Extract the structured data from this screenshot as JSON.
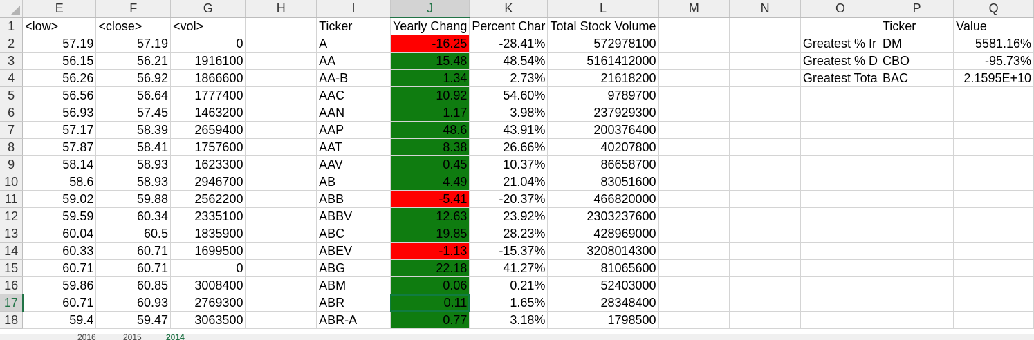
{
  "columns": [
    "E",
    "F",
    "G",
    "H",
    "I",
    "J",
    "K",
    "L",
    "M",
    "N",
    "O",
    "P",
    "Q"
  ],
  "selected_column": "J",
  "selected_row": "17",
  "row_numbers": [
    "1",
    "2",
    "3",
    "4",
    "5",
    "6",
    "7",
    "8",
    "9",
    "10",
    "11",
    "12",
    "13",
    "14",
    "15",
    "16",
    "17",
    "18"
  ],
  "header_row": {
    "E": "<low>",
    "F": "<close>",
    "G": "<vol>",
    "I": "Ticker",
    "J": "Yearly Chang",
    "K": "Percent Char",
    "L": "Total Stock Volume",
    "P": "Ticker",
    "Q": "Value"
  },
  "rows": [
    {
      "low": "57.19",
      "close": "57.19",
      "vol": "0",
      "ticker": "A",
      "yearly": "-16.25",
      "percent": "-28.41%",
      "total": "572978100"
    },
    {
      "low": "56.15",
      "close": "56.21",
      "vol": "1916100",
      "ticker": "AA",
      "yearly": "15.48",
      "percent": "48.54%",
      "total": "5161412000"
    },
    {
      "low": "56.26",
      "close": "56.92",
      "vol": "1866600",
      "ticker": "AA-B",
      "yearly": "1.34",
      "percent": "2.73%",
      "total": "21618200"
    },
    {
      "low": "56.56",
      "close": "56.64",
      "vol": "1777400",
      "ticker": "AAC",
      "yearly": "10.92",
      "percent": "54.60%",
      "total": "9789700"
    },
    {
      "low": "56.93",
      "close": "57.45",
      "vol": "1463200",
      "ticker": "AAN",
      "yearly": "1.17",
      "percent": "3.98%",
      "total": "237929300"
    },
    {
      "low": "57.17",
      "close": "58.39",
      "vol": "2659400",
      "ticker": "AAP",
      "yearly": "48.6",
      "percent": "43.91%",
      "total": "200376400"
    },
    {
      "low": "57.87",
      "close": "58.41",
      "vol": "1757600",
      "ticker": "AAT",
      "yearly": "8.38",
      "percent": "26.66%",
      "total": "40207800"
    },
    {
      "low": "58.14",
      "close": "58.93",
      "vol": "1623300",
      "ticker": "AAV",
      "yearly": "0.45",
      "percent": "10.37%",
      "total": "86658700"
    },
    {
      "low": "58.6",
      "close": "58.93",
      "vol": "2946700",
      "ticker": "AB",
      "yearly": "4.49",
      "percent": "21.04%",
      "total": "83051600"
    },
    {
      "low": "59.02",
      "close": "59.88",
      "vol": "2562200",
      "ticker": "ABB",
      "yearly": "-5.41",
      "percent": "-20.37%",
      "total": "466820000"
    },
    {
      "low": "59.59",
      "close": "60.34",
      "vol": "2335100",
      "ticker": "ABBV",
      "yearly": "12.63",
      "percent": "23.92%",
      "total": "2303237600"
    },
    {
      "low": "60.04",
      "close": "60.5",
      "vol": "1835900",
      "ticker": "ABC",
      "yearly": "19.85",
      "percent": "28.23%",
      "total": "428969000"
    },
    {
      "low": "60.33",
      "close": "60.71",
      "vol": "1699500",
      "ticker": "ABEV",
      "yearly": "-1.13",
      "percent": "-15.37%",
      "total": "3208014300"
    },
    {
      "low": "60.71",
      "close": "60.71",
      "vol": "0",
      "ticker": "ABG",
      "yearly": "22.18",
      "percent": "41.27%",
      "total": "81065600"
    },
    {
      "low": "59.86",
      "close": "60.85",
      "vol": "3008400",
      "ticker": "ABM",
      "yearly": "0.06",
      "percent": "0.21%",
      "total": "52403000"
    },
    {
      "low": "60.71",
      "close": "60.93",
      "vol": "2769300",
      "ticker": "ABR",
      "yearly": "0.11",
      "percent": "1.65%",
      "total": "28348400"
    },
    {
      "low": "59.4",
      "close": "59.47",
      "vol": "3063500",
      "ticker": "ABR-A",
      "yearly": "0.77",
      "percent": "3.18%",
      "total": "1798500"
    }
  ],
  "summary": [
    {
      "label": "Greatest % Ir",
      "ticker": "DM",
      "value": "5581.16%"
    },
    {
      "label": "Greatest % D",
      "ticker": "CBO",
      "value": "-95.73%"
    },
    {
      "label": "Greatest Tota",
      "ticker": "BAC",
      "value": "2.1595E+10"
    }
  ],
  "sheet_tabs": [
    "2016",
    "2015",
    "2014"
  ],
  "active_sheet": "2014",
  "colors": {
    "positive": "#0f7c10",
    "negative": "#ff0000",
    "accent": "#217346"
  }
}
